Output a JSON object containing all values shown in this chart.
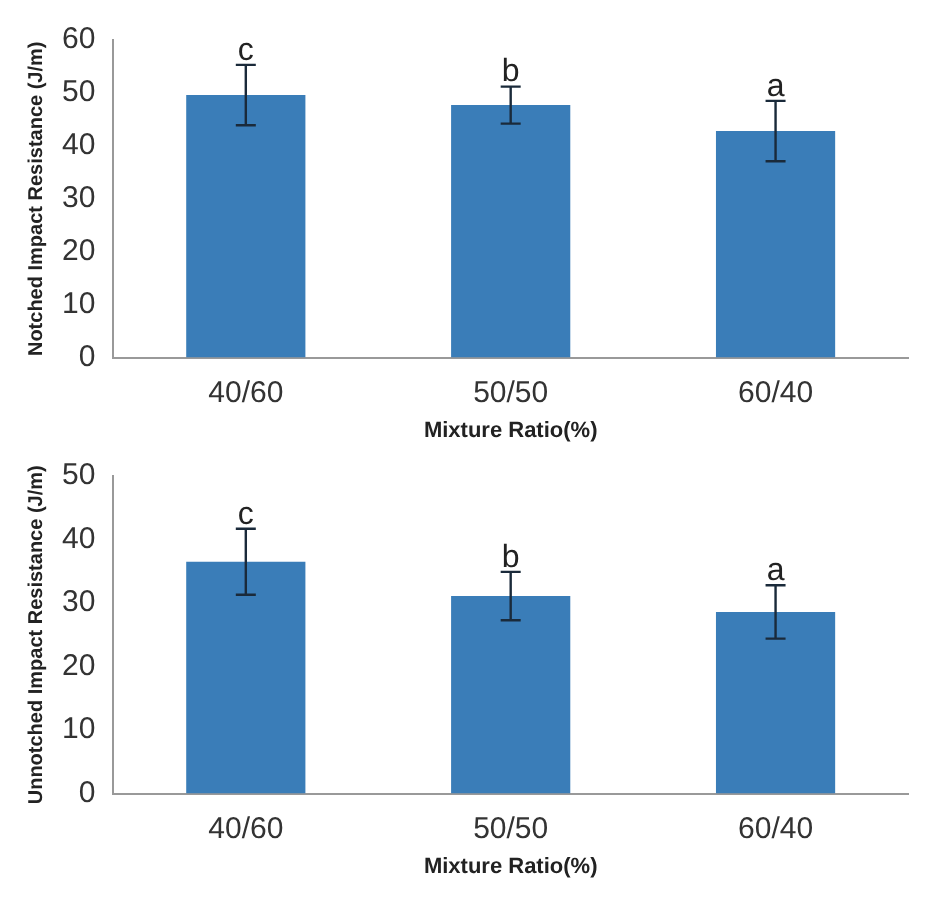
{
  "chart_data": [
    {
      "type": "bar",
      "xlabel": "Mixture Ratio(%)",
      "ylabel": "Notched Impact Resistance (J/m)",
      "categories": [
        "40/60",
        "50/50",
        "60/40"
      ],
      "values": [
        49.6,
        47.7,
        42.8
      ],
      "errors": [
        5.7,
        3.5,
        5.7
      ],
      "color": "#3a7db8",
      "ylim": [
        0,
        60
      ],
      "yticks": [
        0,
        10,
        20,
        30,
        40,
        50,
        60
      ],
      "grid": false,
      "legend": false,
      "annotations": [
        {
          "text": "c",
          "x": "40/60",
          "y": 55.3
        },
        {
          "text": "b",
          "x": "50/50",
          "y": 51.2
        },
        {
          "text": "a",
          "x": "60/40",
          "y": 48.5
        }
      ]
    },
    {
      "type": "bar",
      "xlabel": "Mixture Ratio(%)",
      "ylabel": "Unnotched Impact Resistance (J/m)",
      "categories": [
        "40/60",
        "50/50",
        "60/40"
      ],
      "values": [
        36.5,
        31.1,
        28.6
      ],
      "errors": [
        5.2,
        3.8,
        4.2
      ],
      "color": "#3a7db8",
      "ylim": [
        0,
        50
      ],
      "yticks": [
        0,
        10,
        20,
        30,
        40,
        50
      ],
      "grid": false,
      "legend": false,
      "annotations": [
        {
          "text": "c",
          "x": "40/60",
          "y": 41.7
        },
        {
          "text": "b",
          "x": "50/50",
          "y": 34.9
        },
        {
          "text": "a",
          "x": "60/40",
          "y": 32.8
        }
      ]
    }
  ]
}
